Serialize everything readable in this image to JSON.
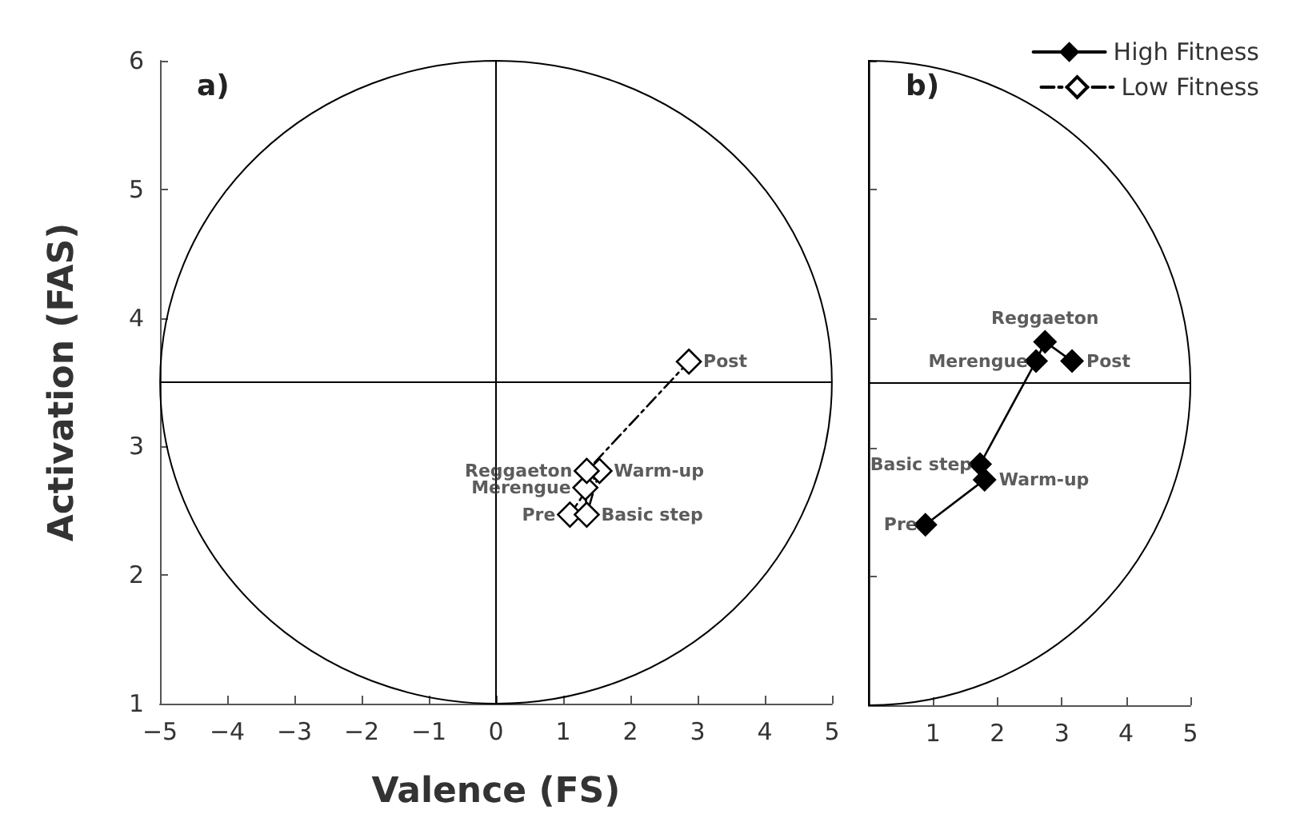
{
  "chart_data": [
    {
      "type": "scatter",
      "title": "a)",
      "xlabel": "Valence (FS)",
      "ylabel": "Activation (FAS)",
      "xlim": [
        -5,
        5
      ],
      "ylim": [
        1,
        6
      ],
      "xticks": [
        {
          "value": -5,
          "label": "−5"
        },
        {
          "value": -4,
          "label": "−4"
        },
        {
          "value": -3,
          "label": "−3"
        },
        {
          "value": -2,
          "label": "−2"
        },
        {
          "value": -1,
          "label": "−1"
        },
        0,
        1,
        2,
        3,
        4,
        5
      ],
      "yticks": [
        1,
        2,
        3,
        4,
        5,
        6
      ],
      "legend": "top right",
      "marker": "diamond",
      "grid": false,
      "ref_lines": [
        {
          "axis": "x",
          "value": 0,
          "color": "#000000"
        },
        {
          "axis": "y",
          "value": 3.5,
          "color": "#000000"
        }
      ],
      "series": [
        {
          "type": "line",
          "name": "Low Fitness",
          "color": "#000000",
          "line_style": "dashed",
          "x": [
            1.1,
            1.54,
            1.35,
            1.33,
            1.35,
            2.87
          ],
          "values": [
            2.47,
            2.81,
            2.47,
            2.68,
            2.81,
            3.66
          ]
        }
      ],
      "annotations": [
        {
          "text": "Pre",
          "x": 1.1,
          "y": 2.47
        },
        {
          "text": "Warm-up",
          "x": 1.54,
          "y": 2.81
        },
        {
          "text": "Basic step",
          "x": 1.35,
          "y": 2.47
        },
        {
          "text": "Merengue",
          "x": 1.33,
          "y": 2.68
        },
        {
          "text": "Reggaeton",
          "x": 1.35,
          "y": 2.81
        },
        {
          "text": "Post",
          "x": 2.87,
          "y": 3.66
        }
      ]
    },
    {
      "type": "scatter",
      "title": "b)",
      "xlim": [
        0,
        5
      ],
      "ylim": [
        1,
        6
      ],
      "xticks": [
        1,
        2,
        3,
        4,
        5
      ],
      "yticks": [
        1,
        2,
        3,
        4,
        5,
        6
      ],
      "tick_labels": "x",
      "legend": "top right",
      "marker": "diamond",
      "grid": false,
      "ref_lines": [
        {
          "axis": "y",
          "value": 3.5,
          "color": "#000000"
        }
      ],
      "series": [
        {
          "type": "line",
          "name": "High Fitness",
          "color": "#000000",
          "line_style": "solid",
          "x": [
            0.88,
            1.8,
            1.73,
            2.6,
            2.74,
            3.16
          ],
          "values": [
            2.4,
            2.75,
            2.87,
            3.67,
            3.82,
            3.67
          ]
        }
      ],
      "annotations": [
        {
          "text": "Pre",
          "x": 0.88,
          "y": 2.4
        },
        {
          "text": "Warm-up",
          "x": 1.8,
          "y": 2.75
        },
        {
          "text": "Basic step",
          "x": 1.73,
          "y": 2.87
        },
        {
          "text": "Merengue",
          "x": 2.6,
          "y": 3.67
        },
        {
          "text": "Reggaeton",
          "x": 2.74,
          "y": 3.82
        },
        {
          "text": "Post",
          "x": 3.16,
          "y": 3.67
        }
      ]
    }
  ]
}
